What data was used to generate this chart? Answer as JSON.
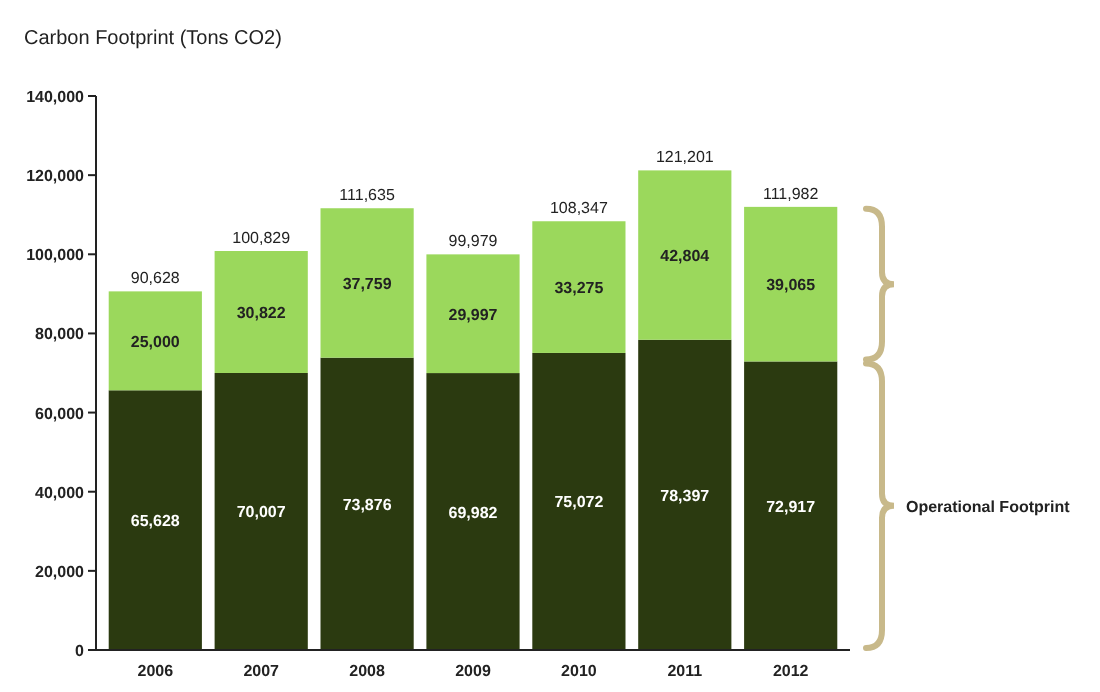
{
  "chart_data": {
    "type": "bar",
    "title": "Carbon Footprint (Tons CO2)",
    "categories": [
      "2006",
      "2007",
      "2008",
      "2009",
      "2010",
      "2011",
      "2012"
    ],
    "stacked": true,
    "series": [
      {
        "name": "Operational Footprint",
        "color": "#2b3a10",
        "values": [
          65628,
          70007,
          73876,
          69982,
          75072,
          78397,
          72917
        ],
        "value_labels": [
          "65,628",
          "70,007",
          "73,876",
          "69,982",
          "75,072",
          "78,397",
          "72,917"
        ]
      },
      {
        "color": "#9bd85c",
        "values": [
          25000,
          30822,
          37759,
          29997,
          33275,
          42804,
          39065
        ],
        "value_labels": [
          "25,000",
          "30,822",
          "37,759",
          "29,997",
          "33,275",
          "42,804",
          "39,065"
        ]
      }
    ],
    "totals": [
      "90,628",
      "100,829",
      "111,635",
      "99,979",
      "108,347",
      "121,201",
      "111,982"
    ],
    "ylim": [
      0,
      140000
    ],
    "yticks": [
      {
        "value": 0,
        "label": "0"
      },
      {
        "value": 20000,
        "label": "20,000"
      },
      {
        "value": 40000,
        "label": "40,000"
      },
      {
        "value": 60000,
        "label": "60,000"
      },
      {
        "value": 80000,
        "label": "80,000"
      },
      {
        "value": 100000,
        "label": "100,000"
      },
      {
        "value": 120000,
        "label": "120,000"
      },
      {
        "value": 140000,
        "label": "140,000"
      }
    ],
    "grid": false,
    "legend": "right"
  }
}
